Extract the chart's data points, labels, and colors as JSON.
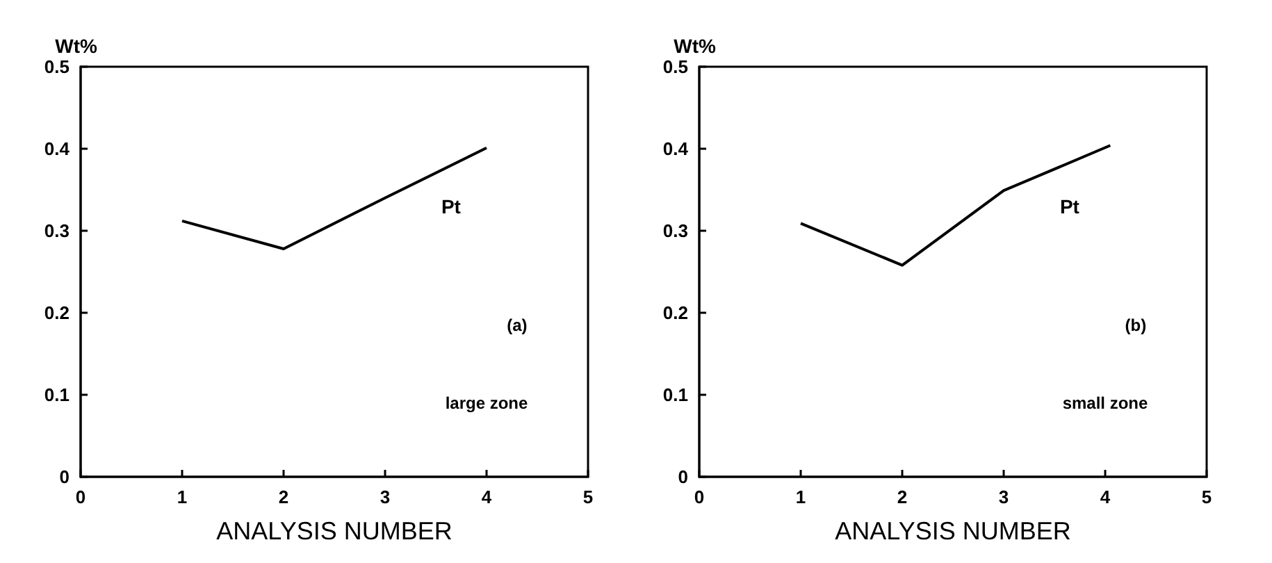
{
  "chart_data": [
    {
      "type": "line",
      "xlabel": "ANALYSIS NUMBER",
      "ylabel": "Wt%",
      "x": [
        1,
        2,
        3,
        4
      ],
      "series": [
        {
          "color": "#000000",
          "values": [
            0.312,
            0.278,
            0.34,
            0.401
          ]
        }
      ],
      "xlim": [
        0,
        5
      ],
      "xticks": [
        0,
        1,
        2,
        3,
        4,
        5
      ],
      "ylim": [
        0,
        0.5
      ],
      "yticks": [
        0,
        0.1,
        0.2,
        0.3,
        0.4,
        0.5
      ],
      "grid": false,
      "marker": "none",
      "line_style": "solid",
      "annotations": [
        "Pt",
        "(a)",
        "large zone"
      ]
    },
    {
      "type": "line",
      "xlabel": "ANALYSIS NUMBER",
      "ylabel": "Wt%",
      "x": [
        1,
        2,
        3,
        4.05
      ],
      "series": [
        {
          "color": "#000000",
          "values": [
            0.309,
            0.258,
            0.349,
            0.404
          ]
        }
      ],
      "xlim": [
        0,
        5
      ],
      "xticks": [
        0,
        1,
        2,
        3,
        4,
        5
      ],
      "ylim": [
        0,
        0.5
      ],
      "yticks": [
        0,
        0.1,
        0.2,
        0.3,
        0.4,
        0.5
      ],
      "grid": false,
      "marker": "none",
      "line_style": "solid",
      "annotations": [
        "Pt",
        "(b)",
        "small zone"
      ]
    }
  ]
}
